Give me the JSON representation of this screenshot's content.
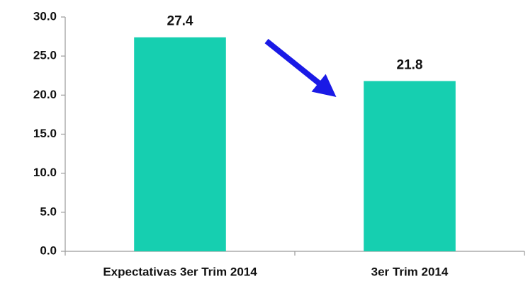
{
  "chart_data": {
    "type": "bar",
    "categories": [
      "Expectativas 3er Trim 2014",
      "3er Trim 2014"
    ],
    "values": [
      27.4,
      21.8
    ],
    "color": "#16cfb0",
    "ylim": [
      0,
      30
    ],
    "yticks": [
      {
        "value": 0,
        "label": "0.0"
      },
      {
        "value": 5,
        "label": "5.0"
      },
      {
        "value": 10,
        "label": "10.0"
      },
      {
        "value": 15,
        "label": "15.0"
      },
      {
        "value": 20,
        "label": "20.0"
      },
      {
        "value": 25,
        "label": "25.0"
      },
      {
        "value": 30,
        "label": "30.0"
      }
    ],
    "grid": false
  }
}
